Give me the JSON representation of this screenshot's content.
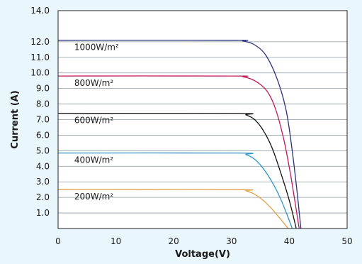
{
  "chart_data": {
    "type": "line",
    "title": "",
    "xlabel": "Voltage(V)",
    "ylabel": "Current (A)",
    "xlim": [
      0,
      50
    ],
    "ylim": [
      0,
      14
    ],
    "x_ticks": [
      "0",
      "10",
      "20",
      "30",
      "40",
      "50"
    ],
    "y_ticks": [
      "14.0",
      "12.0",
      "11.0",
      "10.0",
      "9.0",
      "8.0",
      "7.0",
      "6.0",
      "5.0",
      "4.0",
      "3.0",
      "2.0",
      "1.0"
    ],
    "y_tick_values": [
      14,
      12,
      11,
      10,
      9,
      8,
      7,
      6,
      5,
      4,
      3,
      2,
      1
    ],
    "grid": true,
    "series": [
      {
        "name": "1000W/m²",
        "color": "#2b2f7a",
        "isc": 12.1,
        "points": [
          [
            0,
            12.1
          ],
          [
            30,
            12.1
          ],
          [
            32,
            12.05
          ],
          [
            34,
            11.8
          ],
          [
            36,
            11.1
          ],
          [
            38,
            9.5
          ],
          [
            39.5,
            7.5
          ],
          [
            40.5,
            5.0
          ],
          [
            41.3,
            2.5
          ],
          [
            42.0,
            0
          ]
        ]
      },
      {
        "name": "800W/m²",
        "color": "#c2185b",
        "isc": 9.8,
        "points": [
          [
            0,
            9.8
          ],
          [
            30,
            9.8
          ],
          [
            32,
            9.75
          ],
          [
            34,
            9.5
          ],
          [
            36,
            8.9
          ],
          [
            37.5,
            7.8
          ],
          [
            39,
            5.8
          ],
          [
            40.2,
            3.5
          ],
          [
            41.2,
            1.2
          ],
          [
            41.7,
            0
          ]
        ]
      },
      {
        "name": "600W/m²",
        "color": "#111111",
        "isc": 7.4,
        "points": [
          [
            0,
            7.4
          ],
          [
            31,
            7.4
          ],
          [
            32.5,
            7.3
          ],
          [
            34,
            7.0
          ],
          [
            35.5,
            6.3
          ],
          [
            37,
            5.2
          ],
          [
            38.5,
            3.6
          ],
          [
            40,
            1.8
          ],
          [
            41.2,
            0
          ]
        ]
      },
      {
        "name": "400W/m²",
        "color": "#2e95c9",
        "isc": 4.85,
        "points": [
          [
            0,
            4.85
          ],
          [
            31,
            4.85
          ],
          [
            32.5,
            4.75
          ],
          [
            34,
            4.45
          ],
          [
            35.5,
            3.85
          ],
          [
            37,
            3.0
          ],
          [
            38.5,
            1.9
          ],
          [
            39.8,
            0.7
          ],
          [
            40.5,
            0
          ]
        ]
      },
      {
        "name": "200W/m²",
        "color": "#e0a04a",
        "isc": 2.5,
        "points": [
          [
            0,
            2.5
          ],
          [
            31,
            2.5
          ],
          [
            32.5,
            2.42
          ],
          [
            34,
            2.2
          ],
          [
            35.5,
            1.8
          ],
          [
            37,
            1.25
          ],
          [
            38.5,
            0.6
          ],
          [
            39.8,
            0
          ]
        ]
      }
    ]
  }
}
